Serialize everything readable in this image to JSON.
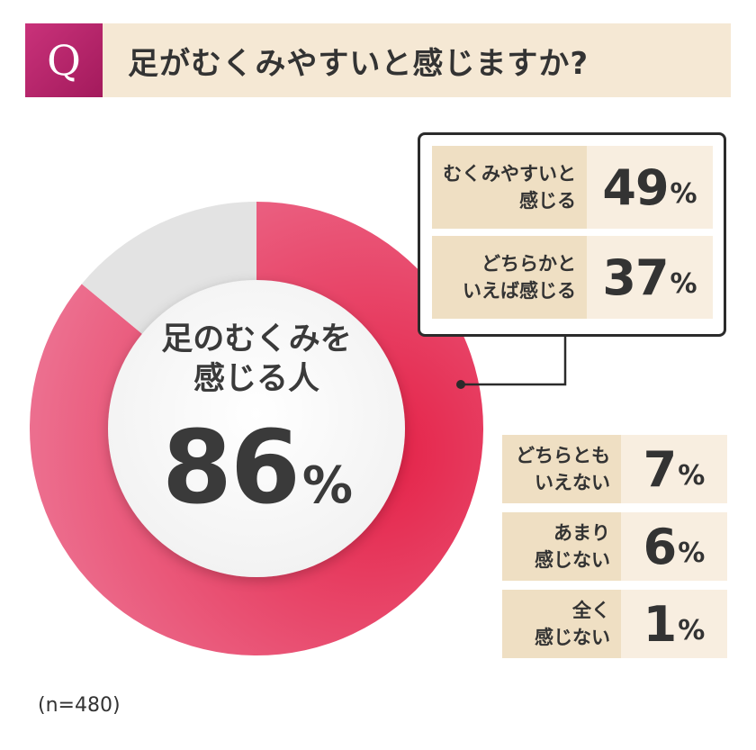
{
  "question": {
    "badge": "Q",
    "text": "足がむくみやすいと感じますか?"
  },
  "colors": {
    "feel": "#e42f52",
    "not_feel": "#e3e3e3",
    "badge": "#b3216a",
    "label_bg": "#efdfc3",
    "value_bg": "#f8eee0"
  },
  "center": {
    "label_line1": "足のむくみを",
    "label_line2": "感じる人",
    "value": "86",
    "unit": "%"
  },
  "chart_data": {
    "type": "pie",
    "style": "donut",
    "slices": [
      {
        "label": "感じる人",
        "value": 86
      },
      {
        "label": "",
        "value": 14
      }
    ]
  },
  "breakdown": [
    {
      "line1": "むくみやすいと",
      "line2": "感じる",
      "value": "49",
      "unit": "%"
    },
    {
      "line1": "どちらかと",
      "line2": "いえば感じる",
      "value": "37",
      "unit": "%"
    },
    {
      "line1": "どちらとも",
      "line2": "いえない",
      "value": "7",
      "unit": "%"
    },
    {
      "line1": "あまり",
      "line2": "感じない",
      "value": "6",
      "unit": "%"
    },
    {
      "line1": "全く",
      "line2": "感じない",
      "value": "1",
      "unit": "%"
    }
  ],
  "note": "(n=480)"
}
